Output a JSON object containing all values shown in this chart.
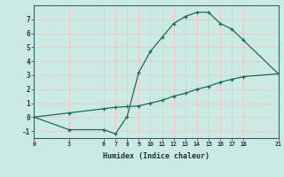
{
  "xlabel": "Humidex (Indice chaleur)",
  "background_color": "#cceae4",
  "grid_color": "#f0c8c8",
  "line_color": "#1a6b5a",
  "line1_x": [
    0,
    3,
    6,
    7,
    8,
    9,
    10,
    11,
    12,
    13,
    14,
    15,
    16,
    17,
    18,
    21
  ],
  "line1_y": [
    0,
    -0.9,
    -0.9,
    -1.2,
    0.05,
    3.2,
    4.7,
    5.7,
    6.7,
    7.2,
    7.5,
    7.5,
    6.7,
    6.3,
    5.5,
    3.1
  ],
  "line2_x": [
    0,
    3,
    6,
    7,
    8,
    9,
    10,
    11,
    12,
    13,
    14,
    15,
    16,
    17,
    18,
    21
  ],
  "line2_y": [
    0,
    0.3,
    0.6,
    0.7,
    0.75,
    0.8,
    1.0,
    1.2,
    1.5,
    1.7,
    2.0,
    2.2,
    2.5,
    2.7,
    2.9,
    3.1
  ],
  "xticks": [
    0,
    3,
    6,
    7,
    8,
    9,
    10,
    11,
    12,
    13,
    14,
    15,
    16,
    17,
    18,
    21
  ],
  "yticks": [
    -1,
    0,
    1,
    2,
    3,
    4,
    5,
    6,
    7
  ],
  "xlim": [
    0,
    21
  ],
  "ylim": [
    -1.5,
    8.0
  ]
}
